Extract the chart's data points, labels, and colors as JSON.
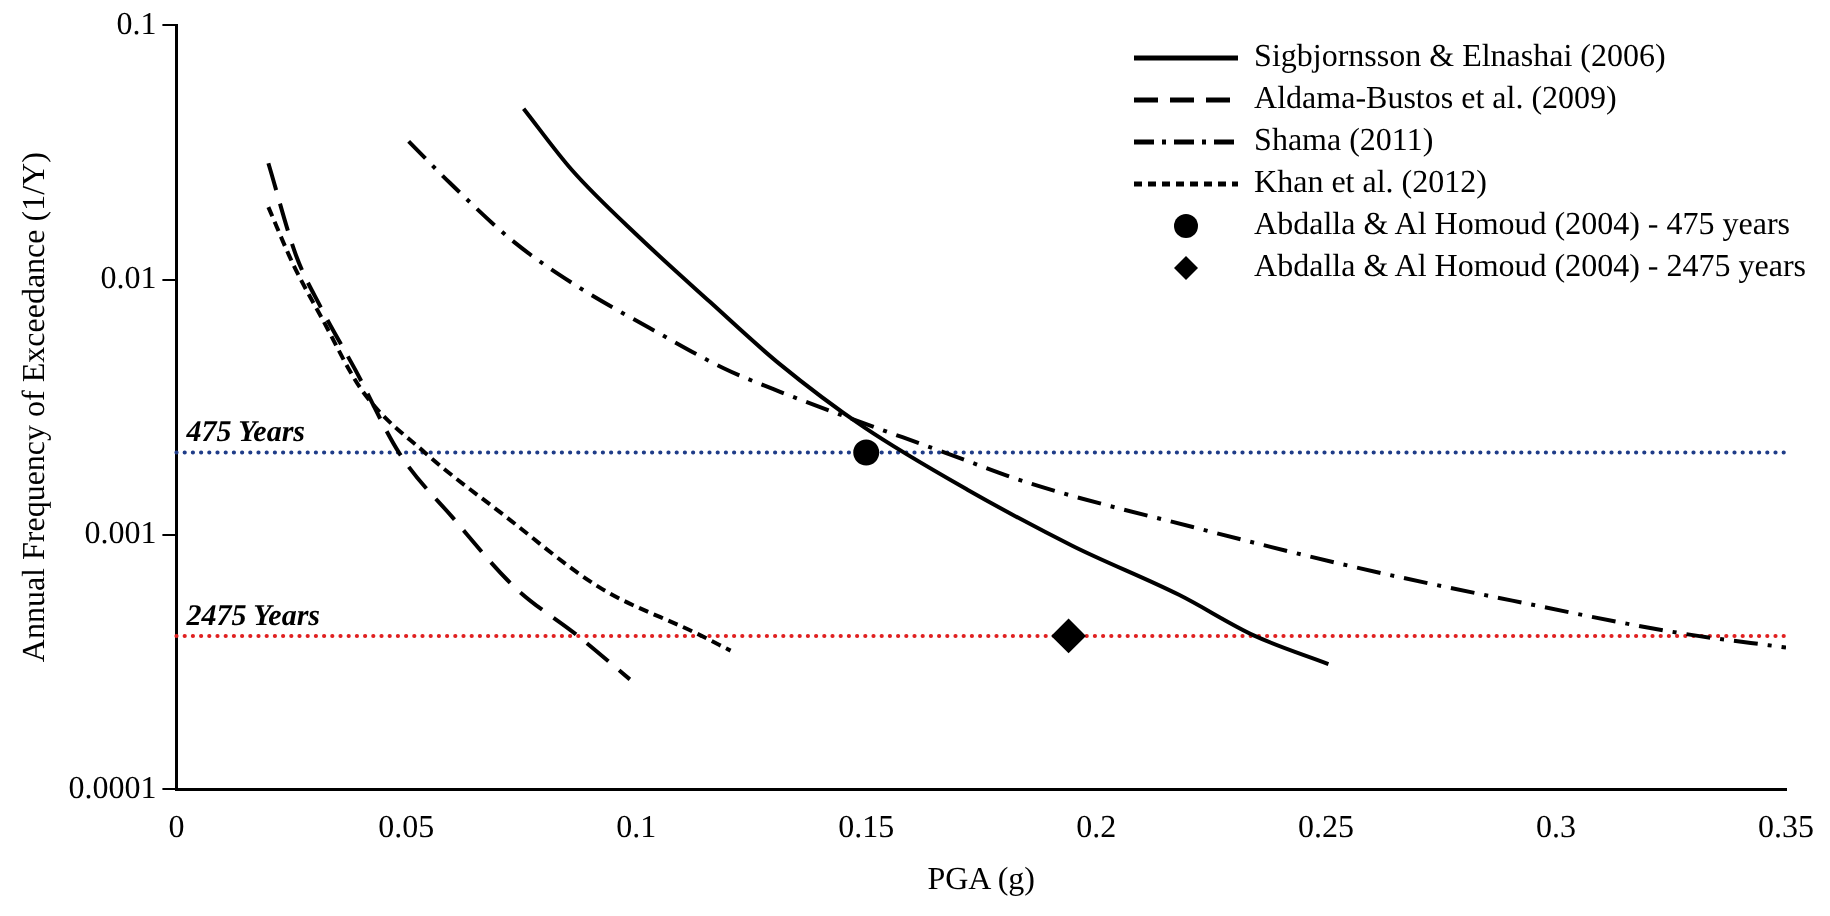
{
  "chart_data": {
    "type": "line",
    "xlabel": "PGA (g)",
    "ylabel": "Annual Frequency of Exceedance (1/Y)",
    "log": "y",
    "xlim": [
      0,
      0.35
    ],
    "xticks": [
      0,
      0.05,
      0.1,
      0.15,
      0.2,
      0.25,
      0.3,
      0.35
    ],
    "ylim": [
      0.0001,
      0.1
    ],
    "yticks": [
      0.0001,
      0.001,
      0.01,
      0.1
    ],
    "grid": false,
    "legend": "top right",
    "marker": "none",
    "series": [
      {
        "name": "Sigbjornsson & Elnashai (2006)",
        "type": "line",
        "line_style": "solid",
        "color": "#000000",
        "x": [
          0.0755,
          0.086,
          0.101,
          0.116,
          0.131,
          0.1495,
          0.172,
          0.195,
          0.218,
          0.2345,
          0.2505
        ],
        "values": [
          0.047,
          0.027,
          0.0145,
          0.0082,
          0.0047,
          0.00264,
          0.0015,
          0.0009,
          0.00058,
          0.0004,
          0.00031
        ]
      },
      {
        "name": "Aldama-Bustos et al. (2009)",
        "type": "line",
        "line_style": "dashed",
        "color": "#000000",
        "x": [
          0.02,
          0.026,
          0.0314,
          0.039,
          0.0486,
          0.06,
          0.0736,
          0.0873,
          0.0986
        ],
        "values": [
          0.0287,
          0.0125,
          0.0078,
          0.0044,
          0.00207,
          0.00117,
          0.00062,
          0.0004,
          0.00027
        ]
      },
      {
        "name": "Shama (2011)",
        "type": "line",
        "line_style": "dashdot",
        "color": "#000000",
        "x": [
          0.0505,
          0.0595,
          0.0736,
          0.0873,
          0.1027,
          0.119,
          0.131,
          0.168,
          0.186,
          0.221,
          0.2555,
          0.2905,
          0.327,
          0.35
        ],
        "values": [
          0.035,
          0.024,
          0.014,
          0.0094,
          0.0065,
          0.0045,
          0.00365,
          0.00207,
          0.00158,
          0.00107,
          0.00075,
          0.00055,
          0.00041,
          0.00036
        ]
      },
      {
        "name": "Khan et al. (2012)",
        "type": "line",
        "line_style": "dotted",
        "color": "#000000",
        "x": [
          0.02,
          0.0255,
          0.0314,
          0.0405,
          0.054,
          0.071,
          0.092,
          0.113,
          0.1205
        ],
        "values": [
          0.0193,
          0.0114,
          0.0072,
          0.00365,
          0.0021,
          0.0012,
          0.00062,
          0.00041,
          0.00035
        ]
      },
      {
        "name": "Abdalla & Al Homoud (2004) - 475 years",
        "type": "scatter",
        "marker": "circle",
        "color": "#000000",
        "x": [
          0.15
        ],
        "values": [
          0.0021
        ]
      },
      {
        "name": "Abdalla & Al Homoud (2004) - 2475 years",
        "type": "scatter",
        "marker": "diamond",
        "color": "#000000",
        "x": [
          0.194
        ],
        "values": [
          0.0004
        ]
      }
    ],
    "ref_lines": [
      {
        "axis": "y",
        "value": 0.0021,
        "label": "475 Years",
        "color": "#1f3c88",
        "line_style": "dotted"
      },
      {
        "axis": "y",
        "value": 0.0004,
        "label": "2475 Years",
        "color": "#e02020",
        "line_style": "dotted"
      }
    ]
  }
}
